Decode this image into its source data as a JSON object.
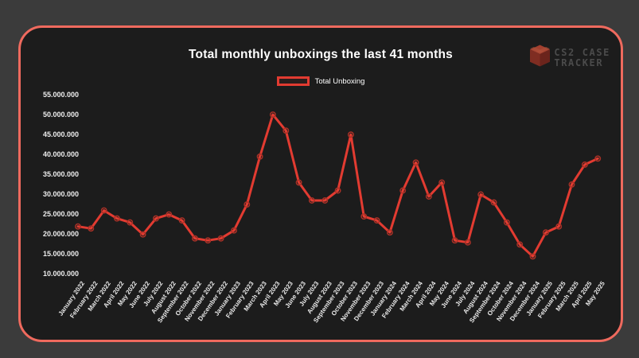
{
  "card": {
    "title": "Total monthly unboxings the last 41 months",
    "legend": {
      "label": "Total Unboxing",
      "swatch_color": "#e23b31"
    },
    "logo": {
      "icon": "case-cube-icon",
      "line1": "CS2 CASE",
      "line2": "TRACKER"
    }
  },
  "colors": {
    "page_bg": "#3b3b3b",
    "card_bg": "#1c1c1c",
    "card_border": "#ef6a5e",
    "line": "#e23b31",
    "marker_stroke": "#a93127",
    "title_text": "#ffffff",
    "tick_text": "#ededed",
    "logo_text": "#4b4b4b"
  },
  "chart_data": {
    "type": "line",
    "title": "Total monthly unboxings the last 41 months",
    "legend_position": "top",
    "grid": false,
    "ylim": [
      10000000,
      55000000
    ],
    "y_ticks": [
      "55.000.000",
      "50.000.000",
      "45.000.000",
      "40.000.000",
      "35.000.000",
      "30.000.000",
      "25.000.000",
      "20.000.000",
      "15.000.000",
      "10.000.000"
    ],
    "categories": [
      "January 2022",
      "February 2022",
      "March 2022",
      "April 2022",
      "May 2022",
      "June 2022",
      "July 2022",
      "August 2022",
      "September 2022",
      "October 2022",
      "November 2022",
      "December 2022",
      "January 2023",
      "February 2023",
      "March 2023",
      "April 2023",
      "May 2023",
      "June 2023",
      "July 2023",
      "August 2023",
      "September 2023",
      "October 2023",
      "November 2023",
      "December 2023",
      "January 2024",
      "February 2024",
      "March 2024",
      "April 2024",
      "May 2024",
      "June 2024",
      "July 2024",
      "August 2024",
      "September 2024",
      "October 2024",
      "November 2024",
      "December 2024",
      "January 2025",
      "February 2025",
      "March 2025",
      "April 2025",
      "May 2025"
    ],
    "series": [
      {
        "name": "Total Unboxing",
        "values": [
          22000000,
          21500000,
          26000000,
          24000000,
          23000000,
          20000000,
          24000000,
          25000000,
          23500000,
          19000000,
          18500000,
          19000000,
          21000000,
          27500000,
          39500000,
          50000000,
          46000000,
          33000000,
          28500000,
          28500000,
          31000000,
          45000000,
          24500000,
          23500000,
          20500000,
          31000000,
          38000000,
          29500000,
          33000000,
          18500000,
          18000000,
          30000000,
          28000000,
          23000000,
          17500000,
          14500000,
          20500000,
          22000000,
          32500000,
          37500000,
          39000000
        ]
      }
    ]
  }
}
